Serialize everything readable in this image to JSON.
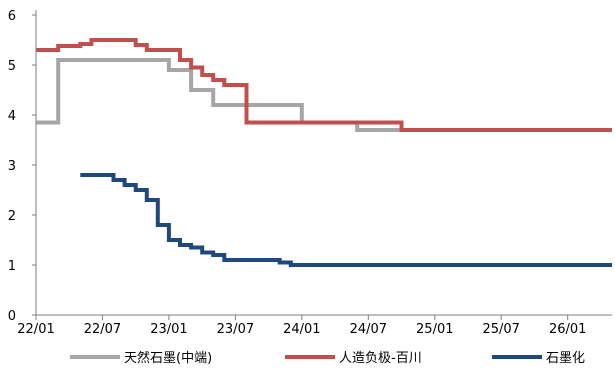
{
  "chart_data": {
    "type": "line",
    "title": "",
    "xlabel": "",
    "ylabel": "",
    "ylim": [
      0,
      6
    ],
    "yticks": [
      0,
      1,
      2,
      3,
      4,
      5,
      6
    ],
    "xticks": [
      "22/01",
      "22/07",
      "23/01",
      "23/07",
      "24/01",
      "24/07",
      "25/01",
      "25/07",
      "26/01"
    ],
    "xlim": [
      "2022-01",
      "2026-05"
    ],
    "grid": false,
    "legend": "bottom",
    "series": [
      {
        "name": "天然石墨(中端)",
        "color": "#a6a6a6",
        "step": true,
        "points": [
          [
            "2022-01",
            3.85
          ],
          [
            "2022-03",
            5.1
          ],
          [
            "2022-05",
            5.1
          ],
          [
            "2022-07",
            5.1
          ],
          [
            "2022-09",
            5.1
          ],
          [
            "2022-11",
            5.1
          ],
          [
            "2023-01",
            4.9
          ],
          [
            "2023-03",
            4.5
          ],
          [
            "2023-05",
            4.2
          ],
          [
            "2023-07",
            4.2
          ],
          [
            "2023-09",
            4.2
          ],
          [
            "2023-11",
            4.2
          ],
          [
            "2024-01",
            3.85
          ],
          [
            "2024-04",
            3.85
          ],
          [
            "2024-06",
            3.7
          ],
          [
            "2024-09",
            3.7
          ],
          [
            "2024-11",
            3.7
          ],
          [
            "2025-03",
            3.7
          ],
          [
            "2025-07",
            3.7
          ],
          [
            "2026-01",
            3.7
          ],
          [
            "2026-05",
            3.7
          ]
        ]
      },
      {
        "name": "人造负极-百川",
        "color": "#c0504d",
        "step": true,
        "points": [
          [
            "2022-01",
            5.3
          ],
          [
            "2022-03",
            5.38
          ],
          [
            "2022-05",
            5.42
          ],
          [
            "2022-06",
            5.5
          ],
          [
            "2022-08",
            5.5
          ],
          [
            "2022-10",
            5.4
          ],
          [
            "2022-11",
            5.3
          ],
          [
            "2023-01",
            5.3
          ],
          [
            "2023-02",
            5.1
          ],
          [
            "2023-03",
            4.95
          ],
          [
            "2023-04",
            4.8
          ],
          [
            "2023-05",
            4.7
          ],
          [
            "2023-06",
            4.6
          ],
          [
            "2023-08",
            3.85
          ],
          [
            "2024-01",
            3.85
          ],
          [
            "2024-06",
            3.85
          ],
          [
            "2024-10",
            3.7
          ],
          [
            "2025-01",
            3.7
          ],
          [
            "2025-07",
            3.7
          ],
          [
            "2026-01",
            3.7
          ],
          [
            "2026-05",
            3.7
          ]
        ]
      },
      {
        "name": "石墨化",
        "color": "#1f497d",
        "step": true,
        "points": [
          [
            "2022-05",
            2.8
          ],
          [
            "2022-07",
            2.8
          ],
          [
            "2022-08",
            2.7
          ],
          [
            "2022-09",
            2.6
          ],
          [
            "2022-10",
            2.5
          ],
          [
            "2022-11",
            2.3
          ],
          [
            "2022-12",
            1.8
          ],
          [
            "2023-01",
            1.5
          ],
          [
            "2023-02",
            1.4
          ],
          [
            "2023-03",
            1.35
          ],
          [
            "2023-04",
            1.25
          ],
          [
            "2023-05",
            1.2
          ],
          [
            "2023-06",
            1.1
          ],
          [
            "2023-09",
            1.1
          ],
          [
            "2023-11",
            1.05
          ],
          [
            "2023-12",
            1.0
          ],
          [
            "2024-06",
            1.0
          ],
          [
            "2025-01",
            1.0
          ],
          [
            "2025-07",
            1.0
          ],
          [
            "2026-01",
            1.0
          ],
          [
            "2026-05",
            1.0
          ]
        ]
      }
    ]
  }
}
